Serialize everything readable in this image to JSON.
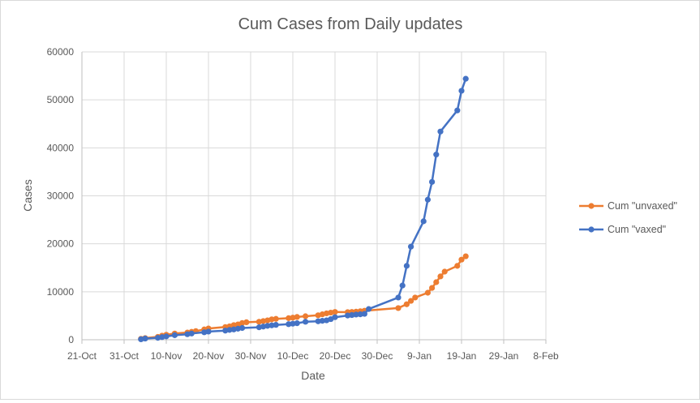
{
  "chart_data": {
    "type": "line",
    "title": "Cum Cases from Daily updates",
    "xlabel": "Date",
    "ylabel": "Cases",
    "x_ticks": [
      "21-Oct",
      "31-Oct",
      "10-Nov",
      "20-Nov",
      "30-Nov",
      "10-Dec",
      "20-Dec",
      "30-Dec",
      "9-Jan",
      "19-Jan",
      "29-Jan",
      "8-Feb"
    ],
    "y_ticks": [
      "0",
      "10000",
      "20000",
      "30000",
      "40000",
      "50000",
      "60000"
    ],
    "xlim": [
      "2021-10-21",
      "2022-02-08"
    ],
    "ylim": [
      0,
      60000
    ],
    "grid": true,
    "legend_position": "right",
    "series": [
      {
        "name": "Cum \"unvaxed\"",
        "color": "#ED7D31",
        "points": [
          [
            "2021-11-04",
            200
          ],
          [
            "2021-11-05",
            350
          ],
          [
            "2021-11-08",
            600
          ],
          [
            "2021-11-09",
            850
          ],
          [
            "2021-11-10",
            1050
          ],
          [
            "2021-11-12",
            1300
          ],
          [
            "2021-11-15",
            1500
          ],
          [
            "2021-11-16",
            1650
          ],
          [
            "2021-11-17",
            1800
          ],
          [
            "2021-11-19",
            2150
          ],
          [
            "2021-11-20",
            2350
          ],
          [
            "2021-11-24",
            2650
          ],
          [
            "2021-11-25",
            2800
          ],
          [
            "2021-11-26",
            3050
          ],
          [
            "2021-11-27",
            3200
          ],
          [
            "2021-11-28",
            3500
          ],
          [
            "2021-11-29",
            3650
          ],
          [
            "2021-12-02",
            3750
          ],
          [
            "2021-12-03",
            3900
          ],
          [
            "2021-12-04",
            4050
          ],
          [
            "2021-12-05",
            4250
          ],
          [
            "2021-12-06",
            4350
          ],
          [
            "2021-12-09",
            4500
          ],
          [
            "2021-12-10",
            4600
          ],
          [
            "2021-12-11",
            4750
          ],
          [
            "2021-12-13",
            4900
          ],
          [
            "2021-12-16",
            5100
          ],
          [
            "2021-12-17",
            5300
          ],
          [
            "2021-12-18",
            5500
          ],
          [
            "2021-12-19",
            5650
          ],
          [
            "2021-12-20",
            5800
          ],
          [
            "2021-12-23",
            5750
          ],
          [
            "2021-12-24",
            5800
          ],
          [
            "2021-12-25",
            5850
          ],
          [
            "2021-12-26",
            5950
          ],
          [
            "2021-12-27",
            6050
          ],
          [
            "2022-01-04",
            6600
          ],
          [
            "2022-01-06",
            7400
          ],
          [
            "2022-01-07",
            8100
          ],
          [
            "2022-01-08",
            8800
          ],
          [
            "2022-01-11",
            9800
          ],
          [
            "2022-01-12",
            10800
          ],
          [
            "2022-01-13",
            12000
          ],
          [
            "2022-01-14",
            13200
          ],
          [
            "2022-01-15",
            14200
          ],
          [
            "2022-01-18",
            15400
          ],
          [
            "2022-01-19",
            16700
          ],
          [
            "2022-01-20",
            17400
          ]
        ]
      },
      {
        "name": "Cum \"vaxed\"",
        "color": "#4472C4",
        "points": [
          [
            "2021-11-04",
            100
          ],
          [
            "2021-11-05",
            250
          ],
          [
            "2021-11-08",
            400
          ],
          [
            "2021-11-09",
            550
          ],
          [
            "2021-11-10",
            700
          ],
          [
            "2021-11-12",
            950
          ],
          [
            "2021-11-15",
            1150
          ],
          [
            "2021-11-16",
            1300
          ],
          [
            "2021-11-19",
            1550
          ],
          [
            "2021-11-20",
            1700
          ],
          [
            "2021-11-24",
            1900
          ],
          [
            "2021-11-25",
            2050
          ],
          [
            "2021-11-26",
            2150
          ],
          [
            "2021-11-27",
            2300
          ],
          [
            "2021-11-28",
            2450
          ],
          [
            "2021-12-02",
            2600
          ],
          [
            "2021-12-03",
            2750
          ],
          [
            "2021-12-04",
            2900
          ],
          [
            "2021-12-05",
            3000
          ],
          [
            "2021-12-06",
            3100
          ],
          [
            "2021-12-09",
            3250
          ],
          [
            "2021-12-10",
            3350
          ],
          [
            "2021-12-11",
            3450
          ],
          [
            "2021-12-13",
            3750
          ],
          [
            "2021-12-16",
            3850
          ],
          [
            "2021-12-17",
            3950
          ],
          [
            "2021-12-18",
            4050
          ],
          [
            "2021-12-19",
            4300
          ],
          [
            "2021-12-20",
            4700
          ],
          [
            "2021-12-23",
            5050
          ],
          [
            "2021-12-24",
            5150
          ],
          [
            "2021-12-25",
            5250
          ],
          [
            "2021-12-26",
            5300
          ],
          [
            "2021-12-27",
            5400
          ],
          [
            "2021-12-28",
            6400
          ],
          [
            "2022-01-04",
            8800
          ],
          [
            "2022-01-05",
            11300
          ],
          [
            "2022-01-06",
            15400
          ],
          [
            "2022-01-07",
            19400
          ],
          [
            "2022-01-10",
            24700
          ],
          [
            "2022-01-11",
            29200
          ],
          [
            "2022-01-12",
            32900
          ],
          [
            "2022-01-13",
            38600
          ],
          [
            "2022-01-14",
            43400
          ],
          [
            "2022-01-18",
            47800
          ],
          [
            "2022-01-19",
            51900
          ],
          [
            "2022-01-20",
            54400
          ]
        ]
      }
    ]
  }
}
